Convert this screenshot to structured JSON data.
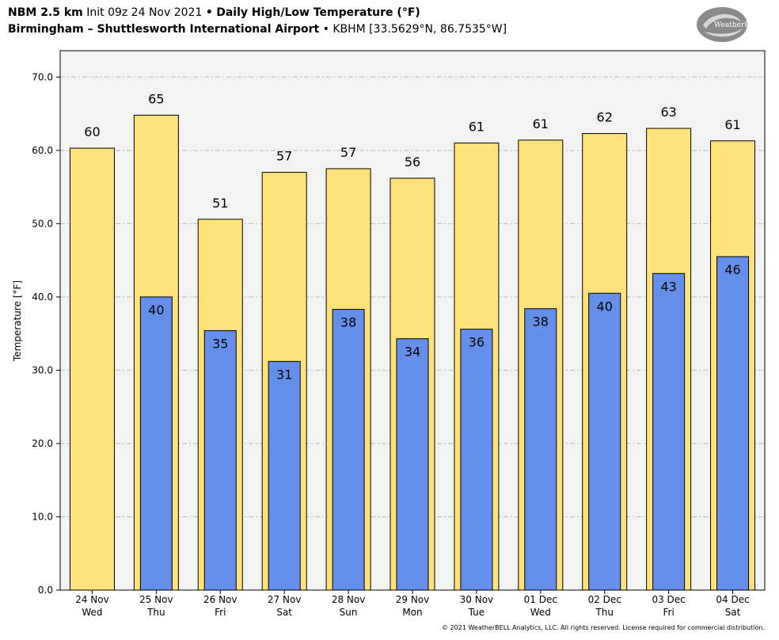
{
  "header": {
    "model": "NBM 2.5 km",
    "init": "Init 09z 24 Nov 2021",
    "sep1": "•",
    "product": "Daily High/Low Temperature (°F)",
    "location": "Birmingham – Shuttlesworth International Airport",
    "sep2": "•",
    "station": "KBHM [33.5629°N, 86.7535°W]"
  },
  "logo": {
    "text": "WeatherBELL",
    "icon": "weatherbell-swirl-logo"
  },
  "footer": "© 2021 WeatherBELL Analytics, LLC. All rights reserved. License required for commercial distribution.",
  "colors": {
    "high": "#FFE27A",
    "low": "#6490EC",
    "plot_bg": "#F3F3F3",
    "grid": "#BBBBBB"
  },
  "chart_data": {
    "type": "bar",
    "ylabel": "Temperature [°F]",
    "xlabel": "",
    "ylim": [
      0,
      70
    ],
    "yticks": [
      "0.0",
      "10.0",
      "20.0",
      "30.0",
      "40.0",
      "50.0",
      "60.0",
      "70.0"
    ],
    "grid": true,
    "categories": [
      [
        "24 Nov",
        "Wed"
      ],
      [
        "25 Nov",
        "Thu"
      ],
      [
        "26 Nov",
        "Fri"
      ],
      [
        "27 Nov",
        "Sat"
      ],
      [
        "28 Nov",
        "Sun"
      ],
      [
        "29 Nov",
        "Mon"
      ],
      [
        "30 Nov",
        "Tue"
      ],
      [
        "01 Dec",
        "Wed"
      ],
      [
        "02 Dec",
        "Thu"
      ],
      [
        "03 Dec",
        "Fri"
      ],
      [
        "04 Dec",
        "Sat"
      ]
    ],
    "series": [
      {
        "key": "high",
        "values": [
          60.3,
          64.8,
          50.6,
          57.0,
          57.5,
          56.2,
          61.0,
          61.4,
          62.3,
          63.0,
          61.3
        ],
        "labels": [
          "60",
          "65",
          "51",
          "57",
          "57",
          "56",
          "61",
          "61",
          "62",
          "63",
          "61"
        ]
      },
      {
        "key": "low",
        "values": [
          null,
          40.0,
          35.4,
          31.2,
          38.3,
          34.3,
          35.6,
          38.4,
          40.5,
          43.2,
          45.5
        ],
        "labels": [
          "",
          "40",
          "35",
          "31",
          "38",
          "34",
          "36",
          "38",
          "40",
          "43",
          "46"
        ]
      }
    ]
  }
}
